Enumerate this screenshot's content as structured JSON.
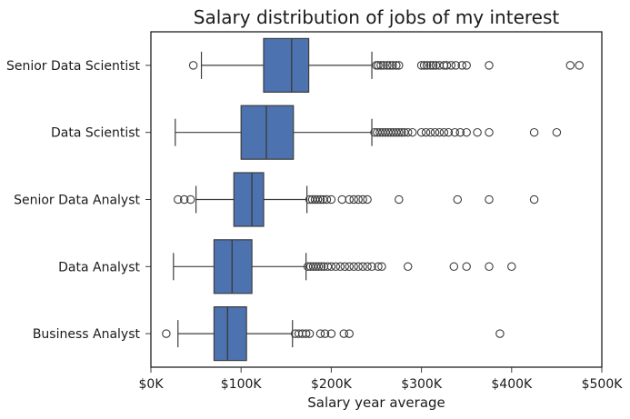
{
  "chart_data": {
    "type": "boxplot",
    "title": "Salary distribution of jobs of my interest",
    "xlabel": "Salary year average",
    "ylabel": "",
    "xlim": [
      0,
      500000
    ],
    "xticks": [
      0,
      100000,
      200000,
      300000,
      400000,
      500000
    ],
    "xtick_labels": [
      "$0K",
      "$100K",
      "$200K",
      "$300K",
      "$400K",
      "$500K"
    ],
    "orientation": "horizontal",
    "grid": false,
    "colors": {
      "box_fill": "#4c72b0",
      "line": "#3d3d3d",
      "frame": "#1f1f1f"
    },
    "categories": [
      {
        "name": "Senior Data Scientist",
        "whisker_low": 56000,
        "q1": 125000,
        "median": 156000,
        "q3": 175000,
        "whisker_high": 245000,
        "outliers": [
          47000,
          250000,
          252000,
          255000,
          258000,
          262000,
          265000,
          268000,
          272000,
          275000,
          300000,
          303000,
          306000,
          310000,
          313000,
          316000,
          320000,
          325000,
          328000,
          333000,
          338000,
          345000,
          350000,
          375000,
          465000,
          475000
        ]
      },
      {
        "name": "Data Scientist",
        "whisker_low": 27000,
        "q1": 100000,
        "median": 128000,
        "q3": 158000,
        "whisker_high": 245000,
        "outliers": [
          248000,
          251000,
          254000,
          257000,
          260000,
          263000,
          266000,
          269000,
          272000,
          275000,
          278000,
          281000,
          285000,
          290000,
          300000,
          305000,
          310000,
          315000,
          320000,
          325000,
          330000,
          337000,
          343000,
          350000,
          362000,
          375000,
          425000,
          450000
        ]
      },
      {
        "name": "Senior Data Analyst",
        "whisker_low": 50000,
        "q1": 92000,
        "median": 112000,
        "q3": 125000,
        "whisker_high": 173000,
        "outliers": [
          30000,
          37000,
          44000,
          176000,
          179000,
          182000,
          185000,
          188000,
          191000,
          195000,
          200000,
          212000,
          220000,
          225000,
          230000,
          235000,
          240000,
          275000,
          340000,
          375000,
          425000
        ]
      },
      {
        "name": "Data Analyst",
        "whisker_low": 25000,
        "q1": 70000,
        "median": 90000,
        "q3": 112000,
        "whisker_high": 172000,
        "outliers": [
          174000,
          177000,
          180000,
          183000,
          186000,
          189000,
          192000,
          196000,
          200000,
          205000,
          210000,
          215000,
          220000,
          225000,
          230000,
          235000,
          240000,
          245000,
          252000,
          256000,
          285000,
          336000,
          350000,
          375000,
          400000
        ]
      },
      {
        "name": "Business Analyst",
        "whisker_low": 30000,
        "q1": 70000,
        "median": 85000,
        "q3": 106000,
        "whisker_high": 157000,
        "outliers": [
          17000,
          160000,
          164000,
          168000,
          172000,
          176000,
          188000,
          193000,
          200000,
          214000,
          220000,
          387000
        ]
      }
    ]
  }
}
